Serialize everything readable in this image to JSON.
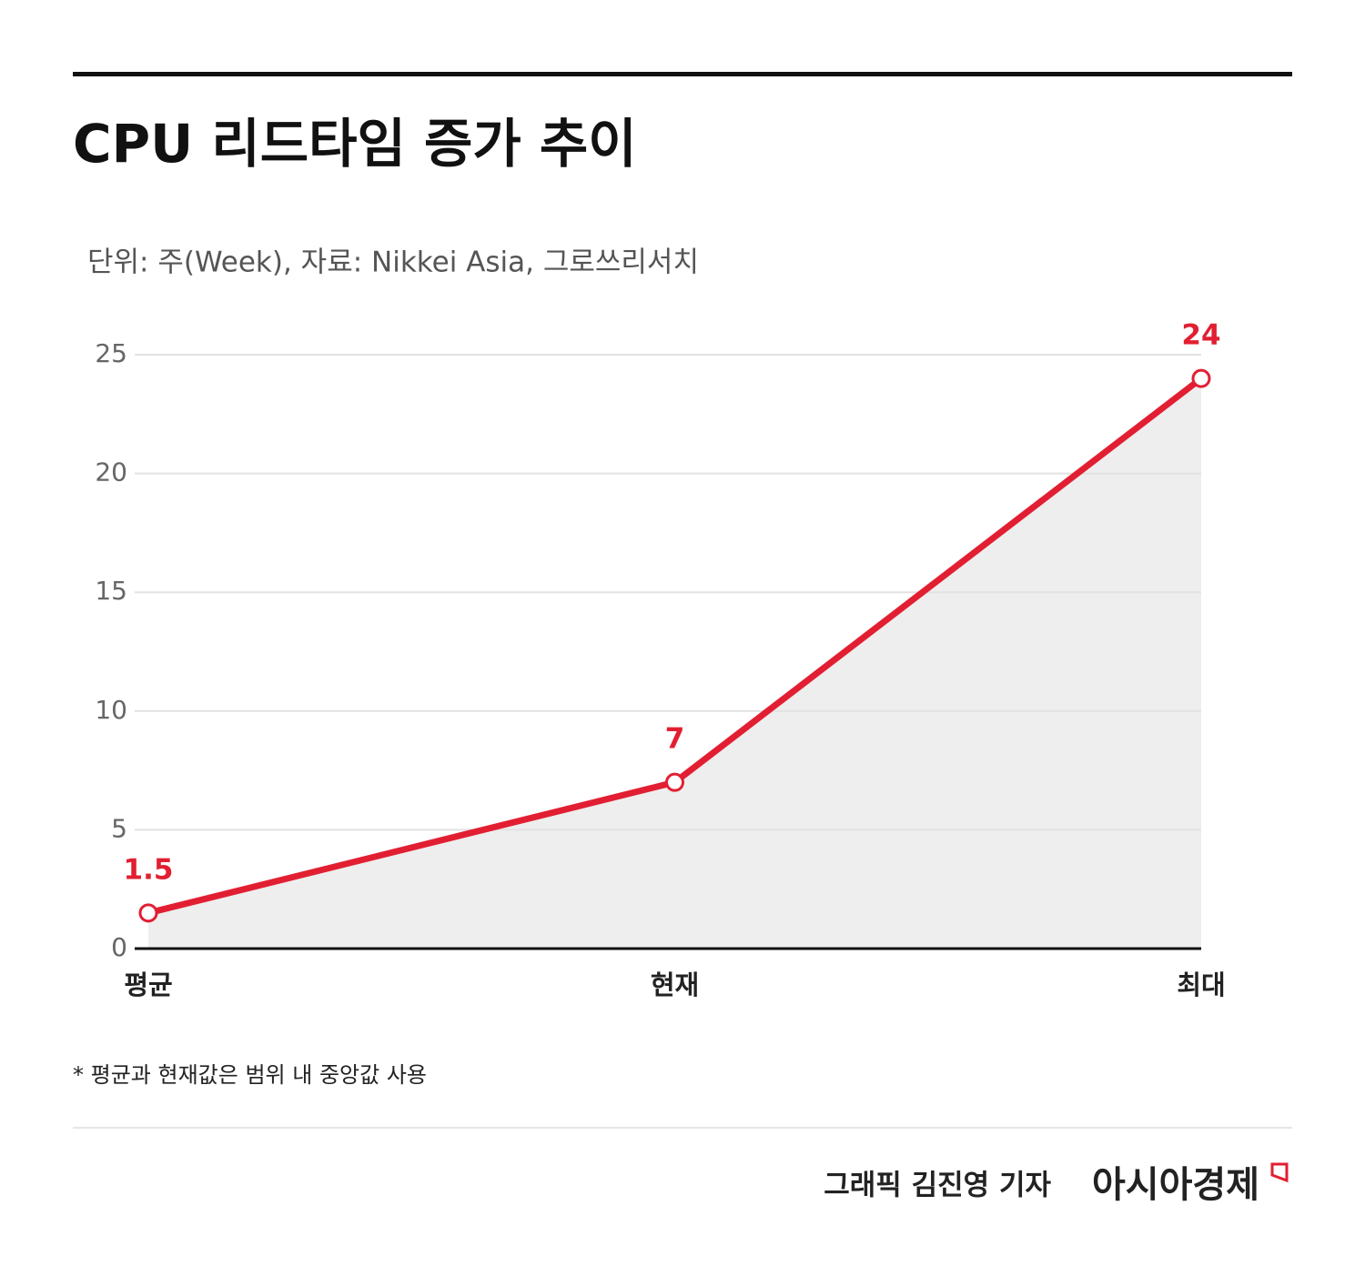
{
  "chart_data": {
    "type": "area-line",
    "title": "CPU 리드타임 증가 추이",
    "subtitle": "단위: 주(Week), 자료: Nikkei Asia, 그로쓰리서치",
    "categories": [
      "평균",
      "현재",
      "최대"
    ],
    "values": [
      1.5,
      7,
      24
    ],
    "color": "#e21f32",
    "area_color": "#eeeeee",
    "ylim": [
      0,
      25
    ],
    "yticks": [
      0,
      5,
      10,
      15,
      20,
      25
    ],
    "grid": true,
    "footnote": "* 평균과 현재값은 범위 내 중앙값 사용",
    "credit": "그래픽  김진영 기자",
    "brand": "아시아경제"
  }
}
